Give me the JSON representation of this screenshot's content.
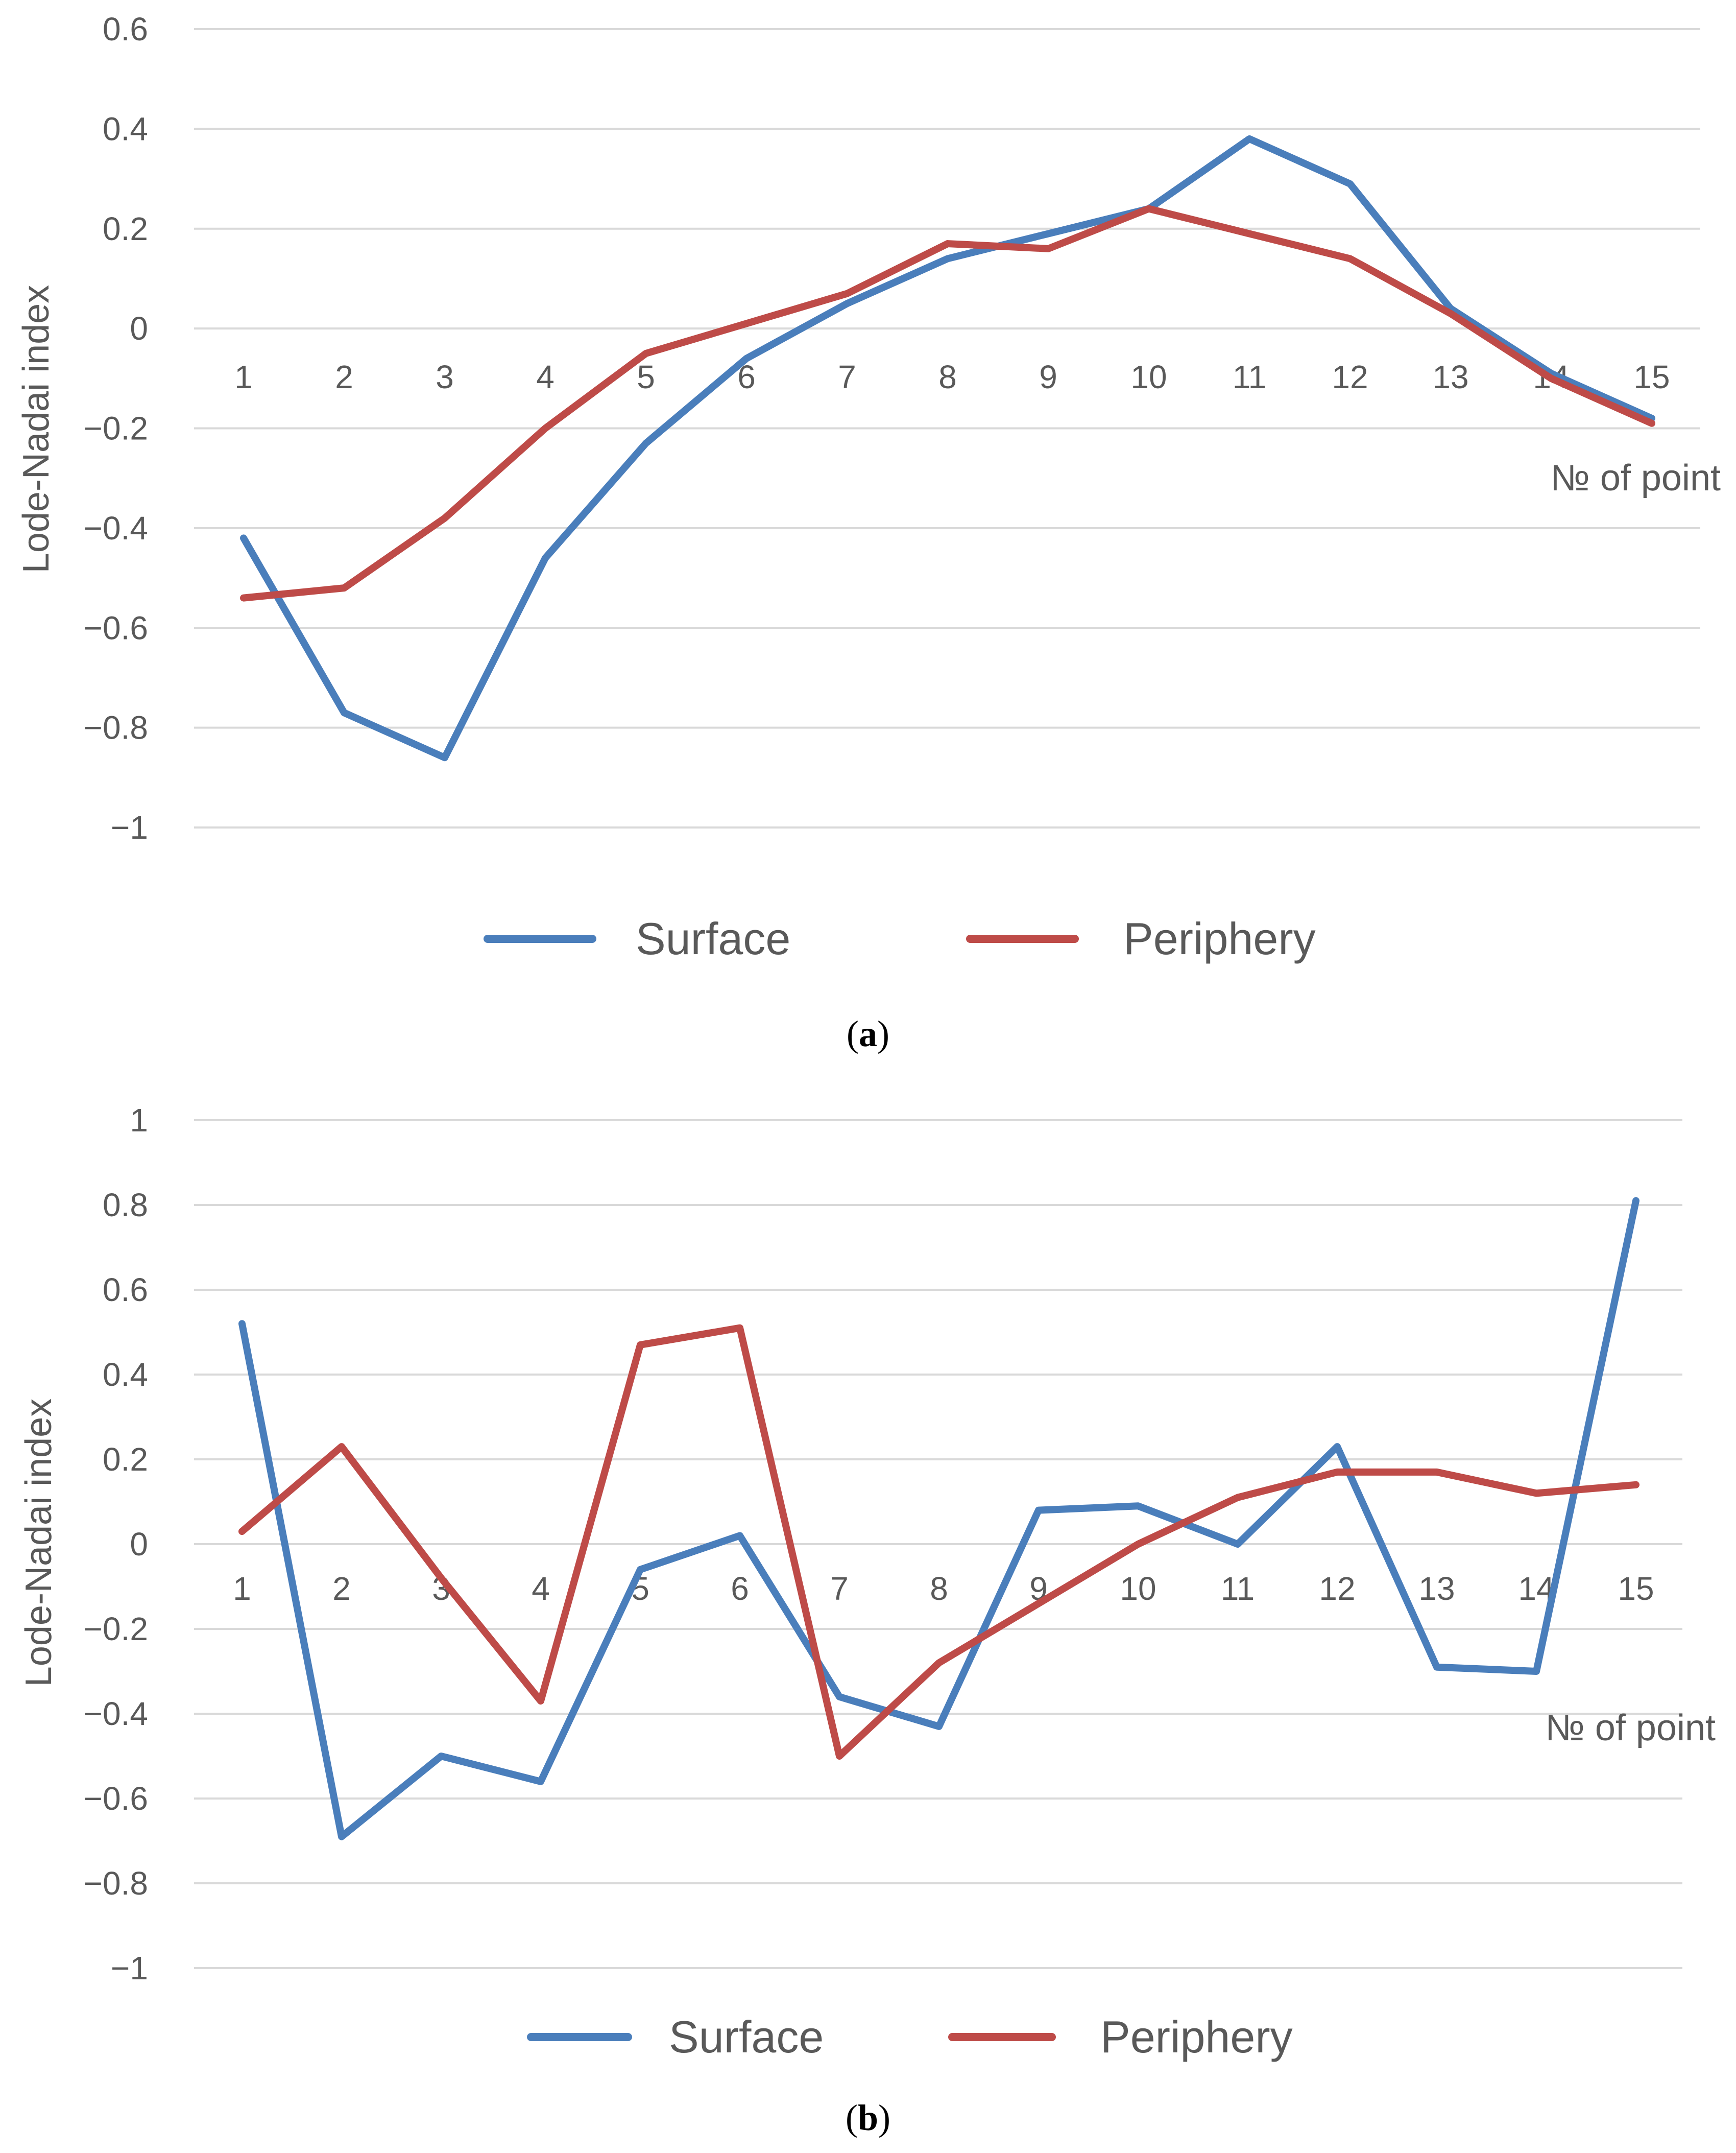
{
  "chart_data": [
    {
      "type": "line",
      "panel": "a",
      "caption_letter": "a",
      "ylabel": "Lode-Nadai index",
      "xlabel": "№ of point",
      "ylim": [
        -1,
        0.6
      ],
      "yticks": [
        0.6,
        0.4,
        0.2,
        0,
        -0.2,
        -0.4,
        -0.6,
        -0.8,
        -1
      ],
      "ytick_labels": [
        "0.6",
        "0.4",
        "0.2",
        "0",
        "−0.2",
        "−0.4",
        "−0.6",
        "−0.8",
        "−1"
      ],
      "categories": [
        "1",
        "2",
        "3",
        "4",
        "5",
        "6",
        "7",
        "8",
        "9",
        "10",
        "11",
        "12",
        "13",
        "14",
        "15"
      ],
      "grid": true,
      "legend_position": "bottom",
      "series": [
        {
          "name": "Surface",
          "color": "#4a7ebb",
          "values": [
            -0.42,
            -0.77,
            -0.86,
            -0.46,
            -0.23,
            -0.06,
            0.05,
            0.14,
            0.19,
            0.24,
            0.38,
            0.29,
            0.04,
            -0.09,
            -0.18
          ]
        },
        {
          "name": "Periphery",
          "color": "#be4b48",
          "values": [
            -0.54,
            -0.52,
            -0.38,
            -0.2,
            -0.05,
            0.01,
            0.07,
            0.17,
            0.16,
            0.24,
            0.19,
            0.14,
            0.03,
            -0.1,
            -0.19
          ]
        }
      ]
    },
    {
      "type": "line",
      "panel": "b",
      "caption_letter": "b",
      "ylabel": "Lode-Nadai index",
      "xlabel": "№ of point",
      "ylim": [
        -1,
        1
      ],
      "yticks": [
        1,
        0.8,
        0.6,
        0.4,
        0.2,
        0,
        -0.2,
        -0.4,
        -0.6,
        -0.8,
        -1
      ],
      "ytick_labels": [
        "1",
        "0.8",
        "0.6",
        "0.4",
        "0.2",
        "0",
        "−0.2",
        "−0.4",
        "−0.6",
        "−0.8",
        "−1"
      ],
      "categories": [
        "1",
        "2",
        "3",
        "4",
        "5",
        "6",
        "7",
        "8",
        "9",
        "10",
        "11",
        "12",
        "13",
        "14",
        "15"
      ],
      "grid": true,
      "legend_position": "bottom",
      "series": [
        {
          "name": "Surface",
          "color": "#4a7ebb",
          "values": [
            0.52,
            -0.69,
            -0.5,
            -0.56,
            -0.06,
            0.02,
            -0.36,
            -0.43,
            0.08,
            0.09,
            0.0,
            0.23,
            -0.29,
            -0.3,
            0.81
          ]
        },
        {
          "name": "Periphery",
          "color": "#be4b48",
          "values": [
            0.03,
            0.23,
            -0.08,
            -0.37,
            0.47,
            0.51,
            -0.5,
            -0.28,
            -0.14,
            0.0,
            0.11,
            0.17,
            0.17,
            0.12,
            0.14
          ]
        }
      ]
    }
  ]
}
